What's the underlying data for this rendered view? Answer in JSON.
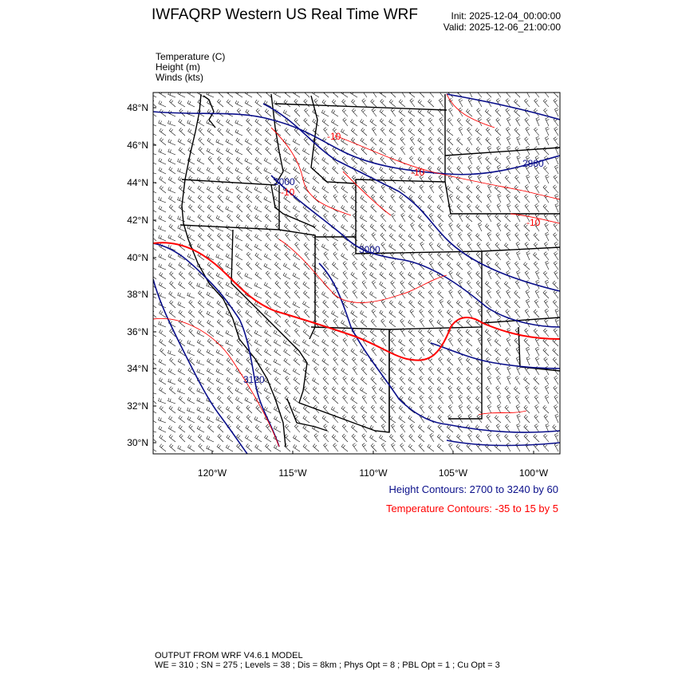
{
  "header": {
    "title": "IWFAQRP Western US Real Time WRF",
    "init_label": "Init: 2025-12-04_00:00:00",
    "valid_label": "Valid: 2025-12-06_21:00:00"
  },
  "variables": {
    "temperature": "Temperature   (C)",
    "height": "Height   (m)",
    "winds": "Winds   (kts)"
  },
  "map": {
    "lat_ticks": [
      "48°N",
      "46°N",
      "44°N",
      "42°N",
      "40°N",
      "38°N",
      "36°N",
      "34°N",
      "32°N",
      "30°N"
    ],
    "lon_ticks": [
      "120°W",
      "115°W",
      "110°W",
      "105°W",
      "100°W"
    ],
    "contour_labels": {
      "height": [
        "3000",
        "3000",
        "3120",
        "2880"
      ],
      "temperature": [
        "-10",
        "-10",
        "-10",
        "-10"
      ]
    },
    "colors": {
      "height": "#0a0f8a",
      "temperature": "#ff0000",
      "borders": "#000000",
      "wind_barbs": "#000000"
    }
  },
  "legend": {
    "height": "Height Contours: 2700 to 3240 by 60",
    "temperature": "Temperature Contours: -35 to 15 by 5"
  },
  "footer": {
    "line1": "OUTPUT FROM WRF V4.6.1 MODEL",
    "line2": "WE = 310 ; SN = 275 ; Levels = 38 ; Dis = 8km ; Phys Opt = 8 ; PBL Opt = 1 ; Cu Opt = 3"
  }
}
